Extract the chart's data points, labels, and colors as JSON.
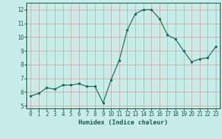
{
  "x": [
    0,
    1,
    2,
    3,
    4,
    5,
    6,
    7,
    8,
    9,
    10,
    11,
    12,
    13,
    14,
    15,
    16,
    17,
    18,
    19,
    20,
    21,
    22,
    23
  ],
  "y": [
    5.7,
    5.9,
    6.3,
    6.2,
    6.5,
    6.5,
    6.6,
    6.4,
    6.4,
    5.2,
    6.9,
    8.3,
    10.5,
    11.7,
    12.0,
    12.0,
    11.35,
    10.15,
    9.85,
    9.0,
    8.2,
    8.4,
    8.5,
    9.3
  ],
  "line_color": "#1a6b5a",
  "marker_color": "#1a6b5a",
  "background_color": "#c8ece8",
  "grid_color": "#d49898",
  "axes_color": "#1a5a4a",
  "xlabel": "Humidex (Indice chaleur)",
  "ylim": [
    4.8,
    12.5
  ],
  "xlim": [
    -0.5,
    23.5
  ],
  "yticks": [
    5,
    6,
    7,
    8,
    9,
    10,
    11,
    12
  ],
  "xticks": [
    0,
    1,
    2,
    3,
    4,
    5,
    6,
    7,
    8,
    9,
    10,
    11,
    12,
    13,
    14,
    15,
    16,
    17,
    18,
    19,
    20,
    21,
    22,
    23
  ],
  "label_fontsize": 6.5,
  "tick_fontsize": 5.5
}
